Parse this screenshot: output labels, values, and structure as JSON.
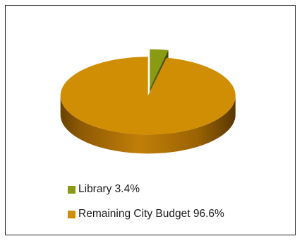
{
  "chart_data": {
    "type": "pie",
    "style": "3d-exploded",
    "categories": [
      "Library",
      "Remaining City Budget"
    ],
    "values": [
      3.4,
      96.6
    ],
    "unit": "%",
    "colors": [
      "#8a9a12",
      "#d08e05"
    ],
    "legend": {
      "placement": "bottom-left",
      "items": [
        {
          "label": "Library 3.4%",
          "color": "#8a9a12"
        },
        {
          "label": "Remaining City Budget 96.6%",
          "color": "#d08e05"
        }
      ]
    }
  }
}
